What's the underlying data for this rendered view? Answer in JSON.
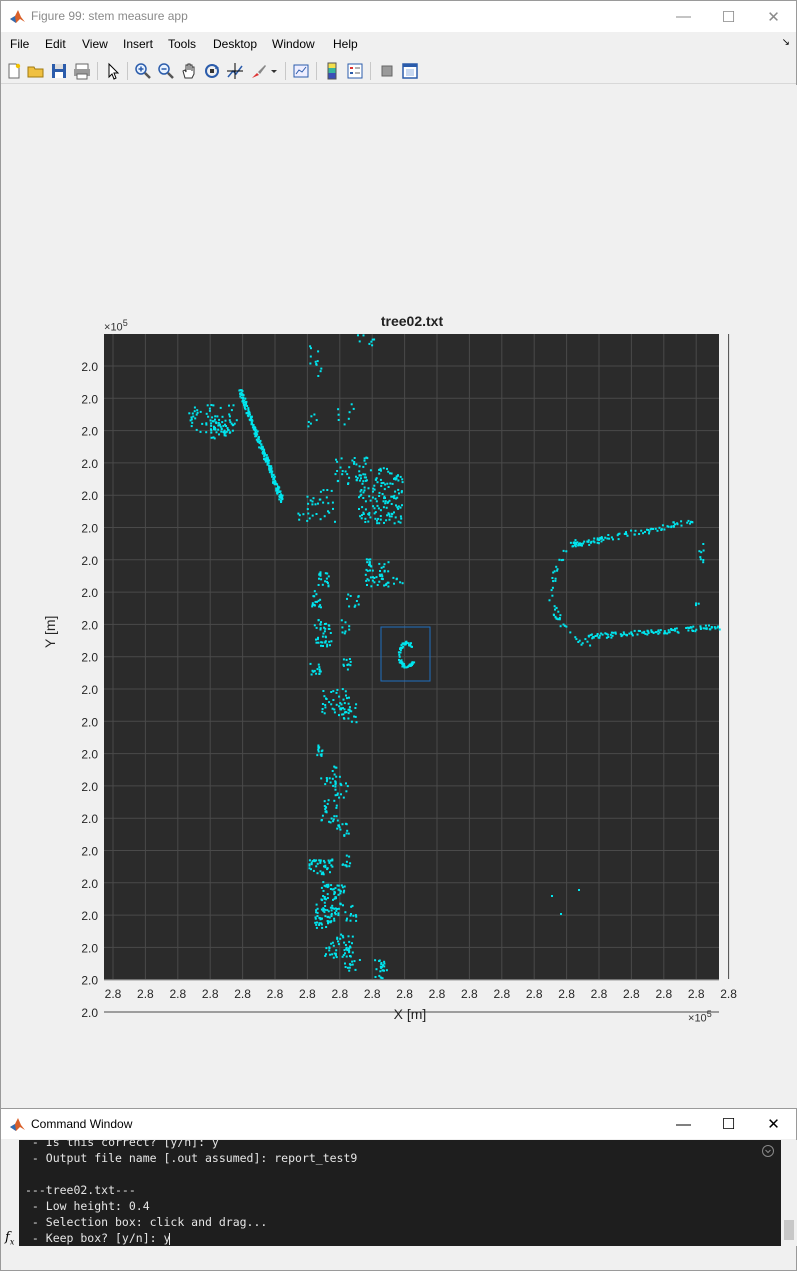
{
  "window": {
    "title": "Figure 99: stem measure app",
    "minimize": "—",
    "maximize": "☐",
    "close": "✕"
  },
  "menu": [
    "File",
    "Edit",
    "View",
    "Insert",
    "Tools",
    "Desktop",
    "Window",
    "Help"
  ],
  "toolbar_icons": [
    "new-figure-icon",
    "open-icon",
    "save-icon",
    "print-icon",
    "pointer-icon",
    "zoom-in-icon",
    "zoom-out-icon",
    "pan-icon",
    "rotate-3d-icon",
    "data-cursor-icon",
    "brush-icon",
    "link-plot-icon",
    "colorbar-icon",
    "legend-icon",
    "hide-plot-tools-icon",
    "show-plot-tools-icon"
  ],
  "chart_data": {
    "type": "scatter",
    "title": "tree02.txt",
    "xlabel": "X [m]",
    "ylabel": "Y [m]",
    "x_exponent": "10",
    "x_exponent_power": "5",
    "y_exponent": "10",
    "y_exponent_power": "5",
    "x_ticks": [
      "2.8",
      "2.8",
      "2.8",
      "2.8",
      "2.8",
      "2.8",
      "2.8",
      "2.8",
      "2.8",
      "2.8",
      "2.8",
      "2.8",
      "2.8",
      "2.8",
      "2.8",
      "2.8",
      "2.8",
      "2.8",
      "2.8",
      "2.8"
    ],
    "y_ticks": [
      "2.0",
      "2.0",
      "2.0",
      "2.0",
      "2.0",
      "2.0",
      "2.0",
      "2.0",
      "2.0",
      "2.0",
      "2.0",
      "2.0",
      "2.0",
      "2.0",
      "2.0",
      "2.0",
      "2.0",
      "2.0",
      "2.0",
      "2.0",
      "2.0"
    ],
    "grid": true,
    "background": "#2b2b2b",
    "marker_color": "#00e5ee",
    "selection_box_color": "#1f6fbf"
  },
  "command_window": {
    "title": "Command Window",
    "minimize": "—",
    "maximize": "☐",
    "close": "✕",
    "lines": [
      " - Is this correct? [y/n]: y",
      " - Output file name [.out assumed]: report_test9",
      "",
      "---tree02.txt---",
      " - Low height: 0.4",
      " - Selection box: click and drag...",
      " - Keep box? [y/n]: y"
    ],
    "prompt_symbol": "fx"
  }
}
